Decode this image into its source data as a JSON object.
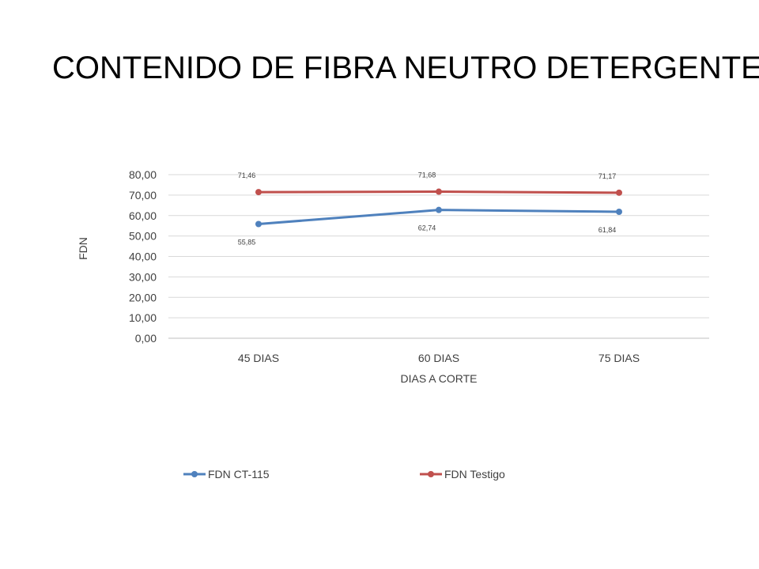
{
  "slide": {
    "title": "CONTENIDO DE FIBRA NEUTRO DETERGENTE"
  },
  "chart_data": {
    "type": "line",
    "title": "",
    "xlabel": "DIAS A CORTE",
    "ylabel": "FDN",
    "categories": [
      "45 DIAS",
      "60 DIAS",
      "75 DIAS"
    ],
    "ylim": [
      0,
      80
    ],
    "ytick_labels": [
      "0,00",
      "10,00",
      "20,00",
      "30,00",
      "40,00",
      "50,00",
      "60,00",
      "70,00",
      "80,00"
    ],
    "grid": true,
    "legend_position": "bottom",
    "series": [
      {
        "name": "FDN CT-115",
        "values": [
          55.85,
          62.74,
          61.84
        ],
        "labels": [
          "55,85",
          "62,74",
          "61,84"
        ],
        "label_position": "below",
        "color": "#4f81bd"
      },
      {
        "name": "FDN Testigo",
        "values": [
          71.46,
          71.68,
          71.17
        ],
        "labels": [
          "71,46",
          "71,68",
          "71,17"
        ],
        "label_position": "above",
        "color": "#c0504d"
      }
    ]
  }
}
